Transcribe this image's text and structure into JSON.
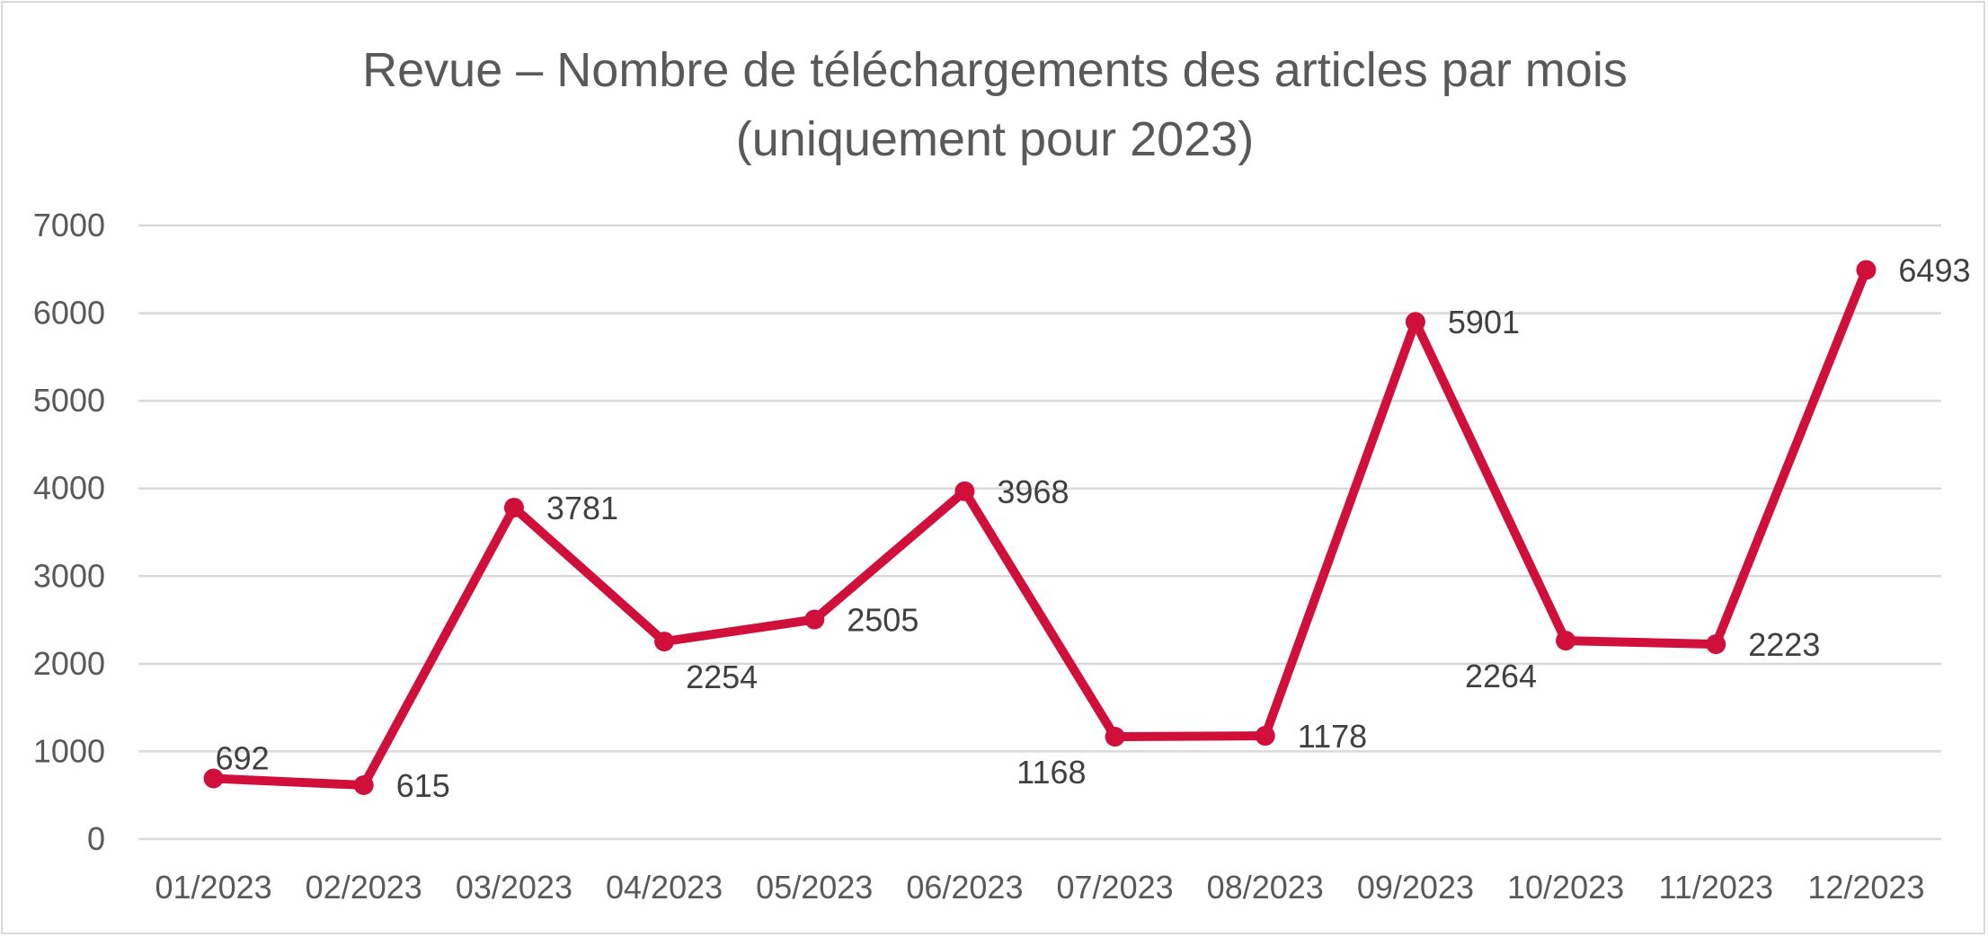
{
  "chart_data": {
    "type": "line",
    "title": "Revue – Nombre de téléchargements des articles par mois",
    "subtitle": "(uniquement pour 2023)",
    "xlabel": "",
    "ylabel": "",
    "categories": [
      "01/2023",
      "02/2023",
      "03/2023",
      "04/2023",
      "05/2023",
      "06/2023",
      "07/2023",
      "08/2023",
      "09/2023",
      "10/2023",
      "11/2023",
      "12/2023"
    ],
    "values": [
      692,
      615,
      3781,
      2254,
      2505,
      3968,
      1168,
      1178,
      5901,
      2264,
      2223,
      6493
    ],
    "data_labels": [
      "692",
      "615",
      "3781",
      "2254",
      "2505",
      "3968",
      "1168",
      "1178",
      "5901",
      "2264",
      "2223",
      "6493"
    ],
    "y_ticks": [
      "0",
      "1000",
      "2000",
      "3000",
      "4000",
      "5000",
      "6000",
      "7000"
    ],
    "ylim": [
      0,
      7000
    ],
    "grid": true,
    "legend": "none",
    "colors": {
      "line": "#d0103a",
      "grid": "#d9d9d9",
      "text": "#595959"
    }
  }
}
